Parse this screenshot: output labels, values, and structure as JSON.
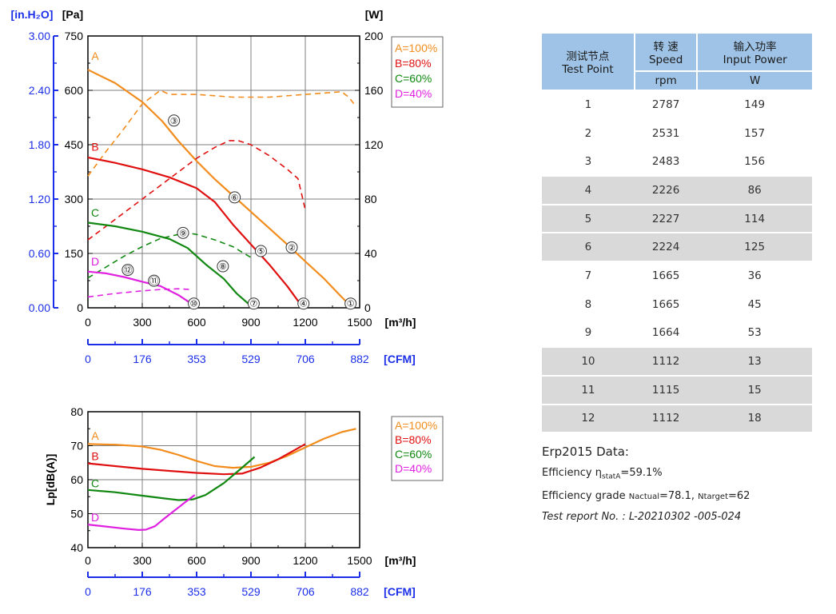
{
  "colors": {
    "A": "#f28c1c",
    "B": "#e01010",
    "C": "#118811",
    "D": "#e020e0",
    "axis_blue": "#1c2fe8",
    "grid": "#7f7f7f"
  },
  "table": {
    "headers": [
      {
        "cn": "测试节点",
        "en": "Test Point",
        "unit": ""
      },
      {
        "cn": "转 速",
        "en": "Speed",
        "unit": "rpm"
      },
      {
        "cn": "输入功率",
        "en": "Input Power",
        "unit": "W"
      }
    ],
    "rows": [
      {
        "point": "1",
        "speed": "2787",
        "power": "149"
      },
      {
        "point": "2",
        "speed": "2531",
        "power": "157"
      },
      {
        "point": "3",
        "speed": "2483",
        "power": "156"
      },
      {
        "point": "4",
        "speed": "2226",
        "power": "86"
      },
      {
        "point": "5",
        "speed": "2227",
        "power": "114"
      },
      {
        "point": "6",
        "speed": "2224",
        "power": "125"
      },
      {
        "point": "7",
        "speed": "1665",
        "power": "36"
      },
      {
        "point": "8",
        "speed": "1665",
        "power": "45"
      },
      {
        "point": "9",
        "speed": "1664",
        "power": "53"
      },
      {
        "point": "10",
        "speed": "1112",
        "power": "13"
      },
      {
        "point": "11",
        "speed": "1115",
        "power": "15"
      },
      {
        "point": "12",
        "speed": "1112",
        "power": "18"
      }
    ]
  },
  "erp": {
    "title": "Erp2015  Data:",
    "efficiency_label": "Efficiency η",
    "efficiency_sub": "statA",
    "efficiency_value": "=59.1%",
    "grade_label": "Efficiency grade",
    "n_actual_label": "Nactual",
    "n_actual_value": "=78.1, ",
    "n_target_label": "Ntarget",
    "n_target_value": "=62",
    "report": "Test report No. : L-20210302 -005-024"
  },
  "chart_data": [
    {
      "type": "line",
      "title": "",
      "x_unit": "[m³/h]",
      "x2_unit": "[CFM]",
      "xlim": [
        0,
        1500
      ],
      "x_ticks": [
        "0",
        "300",
        "600",
        "900",
        "1200",
        "1500"
      ],
      "x2_ticks": [
        "0",
        "176",
        "353",
        "529",
        "706",
        "882"
      ],
      "y_left_unit": "[Pa]",
      "y_left_ticks": [
        "0",
        "150",
        "300",
        "450",
        "600",
        "750"
      ],
      "ylim": [
        0,
        750
      ],
      "y_outer_unit": "[in.H₂O]",
      "y_outer_ticks": [
        "0.00",
        "0.60",
        "1.20",
        "1.80",
        "2.40",
        "3.00"
      ],
      "y_right_unit": "[W]",
      "y_right_ticks": [
        "0",
        "40",
        "80",
        "120",
        "160",
        "200"
      ],
      "y_right_lim": [
        0,
        200
      ],
      "grid": true,
      "legend": [
        "A=100%",
        "B=80%",
        "C=60%",
        "D=40%"
      ],
      "legend_position": "top-right",
      "series": [
        {
          "name": "A",
          "kind": "pressure",
          "color": "A",
          "x": [
            0,
            150,
            300,
            410,
            500,
            600,
            700,
            800,
            900,
            1000,
            1100,
            1200,
            1300,
            1400,
            1450
          ],
          "y": [
            657,
            620,
            568,
            515,
            460,
            405,
            355,
            310,
            265,
            220,
            175,
            128,
            82,
            30,
            5
          ]
        },
        {
          "name": "A",
          "kind": "power",
          "color": "A",
          "x": [
            0,
            100,
            200,
            300,
            400,
            450,
            600,
            800,
            1000,
            1200,
            1300,
            1400,
            1440,
            1480
          ],
          "y": [
            97,
            115,
            132,
            150,
            160,
            157,
            157,
            155,
            155,
            157,
            158,
            159,
            155,
            148
          ]
        },
        {
          "name": "B",
          "kind": "pressure",
          "color": "B",
          "x": [
            0,
            150,
            300,
            450,
            600,
            700,
            800,
            900,
            1000,
            1100,
            1180
          ],
          "y": [
            415,
            400,
            382,
            360,
            330,
            292,
            230,
            175,
            120,
            60,
            5
          ]
        },
        {
          "name": "B",
          "kind": "power",
          "color": "B",
          "x": [
            0,
            100,
            200,
            300,
            400,
            500,
            600,
            700,
            780,
            830,
            900,
            1000,
            1100,
            1160,
            1200
          ],
          "y": [
            50,
            60,
            70,
            80,
            90,
            100,
            110,
            118,
            123,
            123,
            120,
            112,
            102,
            95,
            72
          ]
        },
        {
          "name": "C",
          "kind": "pressure",
          "color": "C",
          "x": [
            0,
            150,
            300,
            450,
            550,
            650,
            750,
            820,
            900
          ],
          "y": [
            235,
            225,
            210,
            190,
            165,
            120,
            80,
            40,
            5
          ]
        },
        {
          "name": "C",
          "kind": "power",
          "color": "C",
          "x": [
            0,
            100,
            200,
            300,
            400,
            500,
            550,
            600,
            700,
            800,
            900
          ],
          "y": [
            22,
            30,
            38,
            45,
            51,
            54,
            55,
            54,
            50,
            45,
            37
          ]
        },
        {
          "name": "D",
          "kind": "pressure",
          "color": "D",
          "x": [
            0,
            100,
            200,
            300,
            400,
            500,
            590
          ],
          "y": [
            100,
            95,
            85,
            72,
            60,
            35,
            5
          ]
        },
        {
          "name": "D",
          "kind": "power",
          "color": "D",
          "x": [
            0,
            150,
            300,
            400,
            500,
            560
          ],
          "y": [
            8,
            10.5,
            12.5,
            13.5,
            14,
            13.5
          ]
        }
      ],
      "test_points": [
        {
          "id": "①",
          "x": 1450,
          "y": 5
        },
        {
          "id": "②",
          "x": 1125,
          "y": 160
        },
        {
          "id": "③",
          "x": 475,
          "y": 510
        },
        {
          "id": "④",
          "x": 1190,
          "y": 5
        },
        {
          "id": "⑤",
          "x": 955,
          "y": 150
        },
        {
          "id": "⑥",
          "x": 810,
          "y": 298
        },
        {
          "id": "⑦",
          "x": 915,
          "y": 5
        },
        {
          "id": "⑧",
          "x": 745,
          "y": 108
        },
        {
          "id": "⑨",
          "x": 525,
          "y": 200
        },
        {
          "id": "⑩",
          "x": 585,
          "y": 5
        },
        {
          "id": "⑪",
          "x": 365,
          "y": 68
        },
        {
          "id": "⑫",
          "x": 220,
          "y": 98
        }
      ],
      "curve_labels": [
        {
          "text": "A",
          "x": 40,
          "y": 695
        },
        {
          "text": "B",
          "x": 40,
          "y": 445
        },
        {
          "text": "C",
          "x": 40,
          "y": 262
        },
        {
          "text": "D",
          "x": 40,
          "y": 128
        }
      ]
    },
    {
      "type": "line",
      "title": "",
      "x_unit": "[m³/h]",
      "x2_unit": "[CFM]",
      "xlim": [
        0,
        1500
      ],
      "x_ticks": [
        "0",
        "300",
        "600",
        "900",
        "1200",
        "1500"
      ],
      "x2_ticks": [
        "0",
        "176",
        "353",
        "529",
        "706",
        "882"
      ],
      "ylabel": "Lp[dB(A)]",
      "ylim": [
        40,
        80
      ],
      "y_ticks": [
        "40",
        "50",
        "60",
        "70",
        "80"
      ],
      "grid": true,
      "legend": [
        "A=100%",
        "B=80%",
        "C=60%",
        "D=40%"
      ],
      "legend_position": "top-right",
      "series": [
        {
          "name": "A",
          "color": "A",
          "x": [
            0,
            150,
            300,
            400,
            500,
            600,
            700,
            800,
            900,
            1000,
            1100,
            1200,
            1300,
            1400,
            1480
          ],
          "y": [
            70.5,
            70.3,
            69.8,
            68.8,
            67.3,
            65.5,
            64,
            63.5,
            63.8,
            65,
            67,
            69.5,
            72,
            74,
            75
          ]
        },
        {
          "name": "B",
          "color": "B",
          "x": [
            0,
            150,
            300,
            450,
            600,
            750,
            850,
            950,
            1050,
            1150,
            1200
          ],
          "y": [
            64.8,
            64,
            63.2,
            62.6,
            62,
            61.6,
            61.8,
            63.5,
            66,
            69,
            70.5
          ]
        },
        {
          "name": "C",
          "color": "C",
          "x": [
            0,
            150,
            300,
            420,
            500,
            580,
            650,
            750,
            850,
            920
          ],
          "y": [
            57,
            56.3,
            55.3,
            54.5,
            54,
            54.2,
            55.5,
            59,
            63.5,
            66.7
          ]
        },
        {
          "name": "D",
          "color": "D",
          "x": [
            0,
            100,
            200,
            280,
            320,
            370,
            420,
            480,
            540,
            590
          ],
          "y": [
            46.8,
            46.2,
            45.6,
            45.2,
            45.3,
            46.3,
            48.5,
            51,
            53.5,
            55.5
          ]
        }
      ],
      "curve_labels": [
        {
          "text": "A",
          "x": 40,
          "y": 73
        },
        {
          "text": "B",
          "x": 40,
          "y": 67
        },
        {
          "text": "C",
          "x": 40,
          "y": 59
        },
        {
          "text": "D",
          "x": 40,
          "y": 49
        }
      ]
    }
  ]
}
